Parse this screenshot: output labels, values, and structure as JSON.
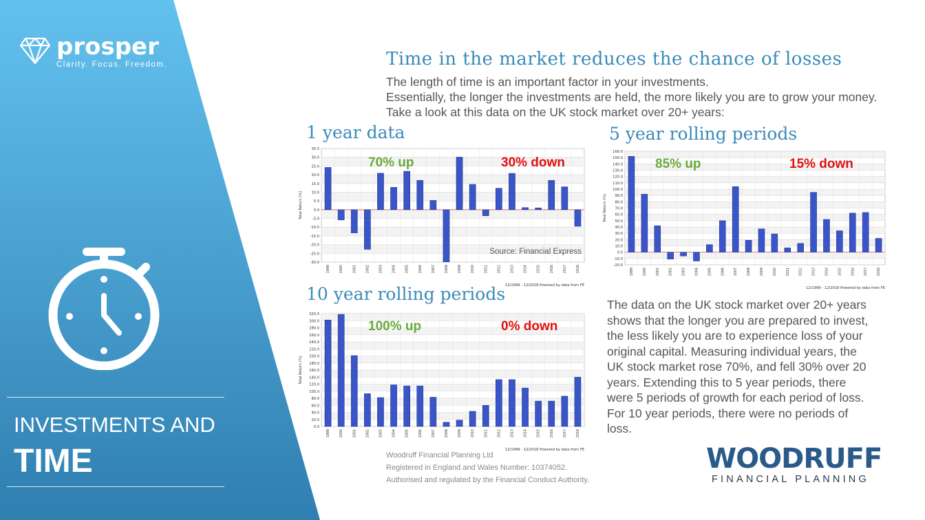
{
  "sidebar": {
    "logo_name": "prosper",
    "logo_tagline": "Clarity. Focus. Freedom.",
    "title_line1": "INVESTMENTS AND",
    "title_line2": "TIME",
    "gradient_top": "#63c1ee",
    "gradient_bottom": "#2f7fb0"
  },
  "main": {
    "title": "Time in the market reduces the chance of losses",
    "intro_line1": "The length of time is an important factor in your investments.",
    "intro_line2": "Essentially, the longer the investments are held, the more likely you are to grow your money. Take a look at this data on the UK stock market over 20+ years:",
    "heading_1yr": "1 year data",
    "heading_5yr": "5 year rolling periods",
    "heading_10yr": "10 year rolling periods",
    "body": "The data on the UK stock market over 20+ years shows that the longer you are prepared to invest, the less likely you are to experience loss of your original capital. Measuring individual years, the UK stock market rose 70%, and fell 30% over 20 years. Extending this to 5 year periods, there were 5 periods of growth for each period of loss. For 10 year periods, there were no periods of loss."
  },
  "footer": {
    "line1": "Woodruff Financial Planning Ltd",
    "line2": "Registered in England and Wales Number: 10374052.",
    "line3": "Authorised and regulated by the Financial Conduct Authority."
  },
  "brand": {
    "name": "WOODRUFF",
    "sub": "FINANCIAL PLANNING"
  },
  "colors": {
    "heading": "#3a8ab8",
    "up": "#6aaa3a",
    "down": "#e01010",
    "bar": "#3a55c8"
  },
  "chart_data": [
    {
      "type": "bar",
      "categories": [
        "1999",
        "2000",
        "2001",
        "2002",
        "2003",
        "2004",
        "2005",
        "2006",
        "2007",
        "2008",
        "2009",
        "2010",
        "2011",
        "2012",
        "2013",
        "2014",
        "2015",
        "2016",
        "2017",
        "2018"
      ],
      "values": [
        24.2,
        -5.9,
        -13.3,
        -22.7,
        20.9,
        12.8,
        22.0,
        16.8,
        5.3,
        -29.9,
        30.1,
        14.5,
        -3.5,
        12.3,
        20.8,
        1.2,
        1.0,
        16.8,
        13.1,
        -9.5
      ],
      "ylim": [
        -30,
        35
      ],
      "ytick_step": 5,
      "ylabel": "Total Return (%)",
      "up_label": "70% up",
      "down_label": "30% down",
      "source": "Source: Financial Express",
      "footnote": "12/1999 - 12/2018 Powered by data from FE"
    },
    {
      "type": "bar",
      "categories": [
        "1999",
        "2000",
        "2001",
        "2002",
        "2003",
        "2004",
        "2005",
        "2006",
        "2007",
        "2008",
        "2009",
        "2010",
        "2011",
        "2012",
        "2013",
        "2014",
        "2015",
        "2016",
        "2017",
        "2018"
      ],
      "values": [
        152,
        92,
        42,
        -11,
        -6,
        -14,
        12,
        50,
        104,
        19,
        37,
        29,
        7,
        14,
        95,
        52,
        34,
        62,
        63,
        22
      ],
      "ylim": [
        -20,
        160
      ],
      "ytick_step": 10,
      "ylabel": "Total Return (%)",
      "up_label": "85% up",
      "down_label": "15% down",
      "footnote": "12/1999 - 12/2018 Powered by data from FE"
    },
    {
      "type": "bar",
      "categories": [
        "1999",
        "2000",
        "2001",
        "2002",
        "2003",
        "2004",
        "2005",
        "2006",
        "2007",
        "2008",
        "2009",
        "2010",
        "2011",
        "2012",
        "2013",
        "2014",
        "2015",
        "2016",
        "2017",
        "2018"
      ],
      "values": [
        302,
        318,
        201,
        93,
        82,
        118,
        115,
        115,
        83,
        12,
        18,
        43,
        60,
        133,
        133,
        109,
        72,
        72,
        86,
        140
      ],
      "ylim": [
        0,
        320
      ],
      "ytick_step": 20,
      "ylabel": "Total Return (%)",
      "up_label": "100% up",
      "down_label": "0% down",
      "footnote": "12/1999 - 12/2018 Powered by data from FE"
    }
  ]
}
